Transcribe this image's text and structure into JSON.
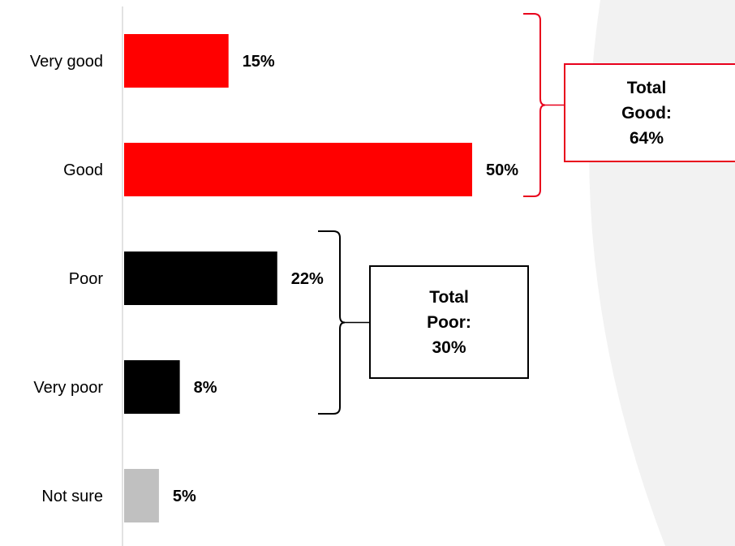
{
  "chart_data": {
    "type": "bar",
    "orientation": "horizontal",
    "categories": [
      "Very good",
      "Good",
      "Poor",
      "Very poor",
      "Not sure"
    ],
    "values": [
      15,
      50,
      22,
      8,
      5
    ],
    "value_labels": [
      "15%",
      "50%",
      "22%",
      "8%",
      "5%"
    ],
    "colors": [
      "#ff0000",
      "#ff0000",
      "#000000",
      "#000000",
      "#c0c0c0"
    ],
    "xlim": [
      0,
      50
    ],
    "grid": false,
    "annotations": [
      {
        "id": "total-good",
        "lines": [
          "Total",
          "Good:",
          "64%"
        ],
        "covers": [
          "Very good",
          "Good"
        ],
        "color": "#e8001c"
      },
      {
        "id": "total-poor",
        "lines": [
          "Total",
          "Poor:",
          "30%"
        ],
        "covers": [
          "Poor",
          "Very poor"
        ],
        "color": "#000000"
      }
    ]
  },
  "background": {
    "panel_color": "#f2f2f2"
  }
}
